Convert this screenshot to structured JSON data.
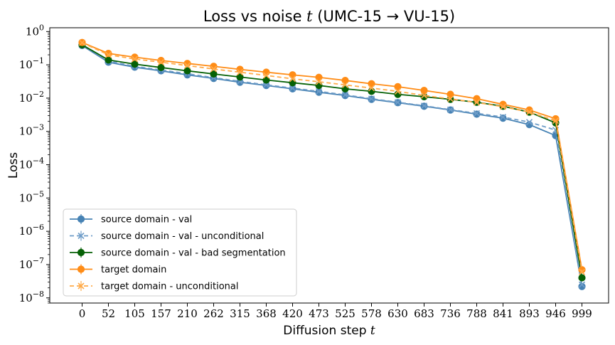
{
  "chart_data": {
    "type": "line",
    "title": "Loss vs noise t (UMC-15 → VU-15)",
    "xlabel": "Diffusion step t",
    "ylabel": "Loss",
    "yscale": "log",
    "ylim": [
      7e-09,
      1.3
    ],
    "categories": [
      "0",
      "52",
      "105",
      "157",
      "210",
      "262",
      "315",
      "368",
      "420",
      "473",
      "525",
      "578",
      "630",
      "683",
      "736",
      "788",
      "841",
      "893",
      "946",
      "999"
    ],
    "y_ticks": [
      {
        "value": 1,
        "base": "10",
        "exp": "0"
      },
      {
        "value": 0.1,
        "base": "10",
        "exp": "−1"
      },
      {
        "value": 0.01,
        "base": "10",
        "exp": "−2"
      },
      {
        "value": 0.001,
        "base": "10",
        "exp": "−3"
      },
      {
        "value": 0.0001,
        "base": "10",
        "exp": "−4"
      },
      {
        "value": 1e-05,
        "base": "10",
        "exp": "−5"
      },
      {
        "value": 1e-06,
        "base": "10",
        "exp": "−6"
      },
      {
        "value": 1e-07,
        "base": "10",
        "exp": "−7"
      },
      {
        "value": 1e-08,
        "base": "10",
        "exp": "−8"
      }
    ],
    "grid": false,
    "legend_position": "lower-left",
    "series": [
      {
        "name": "source domain - val",
        "color": "#4682b4",
        "linestyle": "solid",
        "marker": "circle",
        "values": [
          0.38,
          0.12,
          0.085,
          0.066,
          0.05,
          0.039,
          0.03,
          0.024,
          0.019,
          0.015,
          0.012,
          0.0092,
          0.0073,
          0.0057,
          0.0044,
          0.0033,
          0.0025,
          0.0016,
          0.00075,
          2.2e-08
        ]
      },
      {
        "name": "source domain - val - unconditional",
        "color": "#6f9dc8",
        "linestyle": "dashed",
        "marker": "x",
        "values": [
          0.39,
          0.13,
          0.09,
          0.07,
          0.054,
          0.041,
          0.032,
          0.025,
          0.02,
          0.016,
          0.0125,
          0.0096,
          0.0075,
          0.0059,
          0.0045,
          0.0035,
          0.0027,
          0.0019,
          0.0011,
          2.5e-08
        ]
      },
      {
        "name": "source domain - val - bad segmentation",
        "color": "#066106",
        "linestyle": "solid",
        "marker": "circle",
        "values": [
          0.4,
          0.14,
          0.105,
          0.083,
          0.066,
          0.053,
          0.043,
          0.035,
          0.029,
          0.024,
          0.019,
          0.016,
          0.013,
          0.011,
          0.0092,
          0.0075,
          0.0057,
          0.0038,
          0.0018,
          4e-08
        ]
      },
      {
        "name": "target domain",
        "color": "#ff8c16",
        "linestyle": "solid",
        "marker": "circle",
        "values": [
          0.47,
          0.22,
          0.17,
          0.135,
          0.11,
          0.09,
          0.073,
          0.06,
          0.05,
          0.042,
          0.034,
          0.027,
          0.022,
          0.017,
          0.013,
          0.0096,
          0.0065,
          0.0044,
          0.0024,
          7e-08
        ]
      },
      {
        "name": "target domain - unconditional",
        "color": "#ffab4a",
        "linestyle": "dashed",
        "marker": "x",
        "values": [
          0.46,
          0.2,
          0.15,
          0.12,
          0.095,
          0.075,
          0.06,
          0.048,
          0.038,
          0.031,
          0.025,
          0.02,
          0.016,
          0.012,
          0.0095,
          0.0074,
          0.0055,
          0.0038,
          0.0021,
          6e-08
        ]
      }
    ]
  }
}
